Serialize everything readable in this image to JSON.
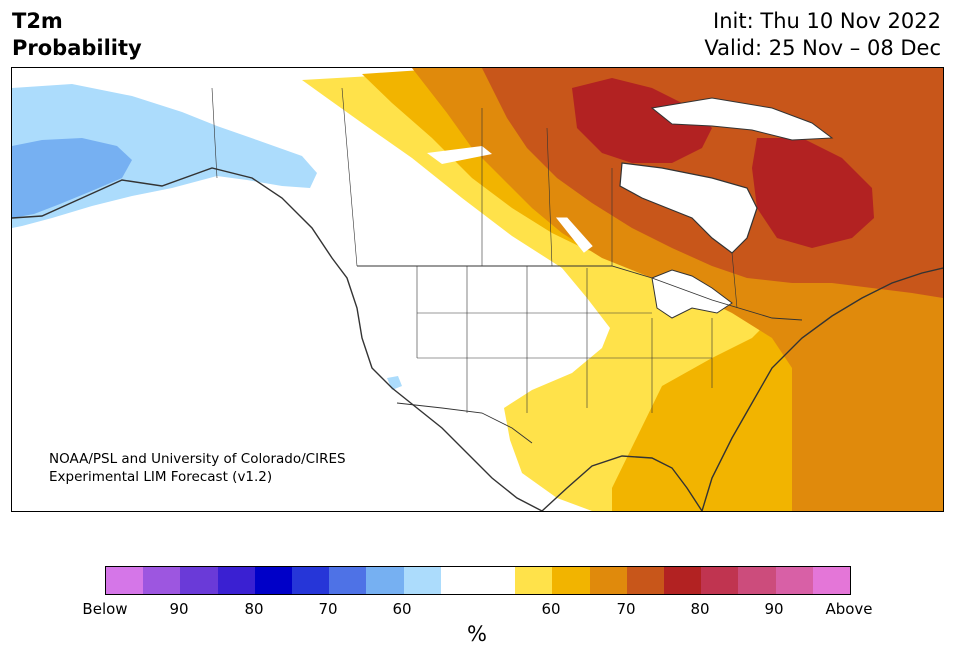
{
  "header": {
    "title_line1": "T2m",
    "title_line2": "Probability",
    "init": "Init: Thu 10 Nov 2022",
    "valid": "Valid: 25 Nov – 08 Dec"
  },
  "credit": {
    "line1": "NOAA/PSL and University of Colorado/CIRES",
    "line2": "Experimental LIM Forecast (v1.2)"
  },
  "colorbar": {
    "colors": [
      "#d576e8",
      "#9d56e0",
      "#6a3ad8",
      "#3a20d2",
      "#0000c8",
      "#2636d8",
      "#4e72e6",
      "#76b0f2",
      "#acdcfc",
      "#ffffff",
      "#ffffff",
      "#ffe24a",
      "#f2b400",
      "#e08a0c",
      "#c8561a",
      "#b22222",
      "#c03450",
      "#cc4c7c",
      "#d860a6",
      "#e476d8"
    ],
    "ticks": [
      "Below",
      "90",
      "80",
      "70",
      "60",
      "60",
      "70",
      "80",
      "90",
      "Above"
    ],
    "unit": "%"
  },
  "map": {
    "region": "North America",
    "land_color": "#ffffff",
    "water_color": "#ffffff",
    "border_color": "#333333"
  }
}
